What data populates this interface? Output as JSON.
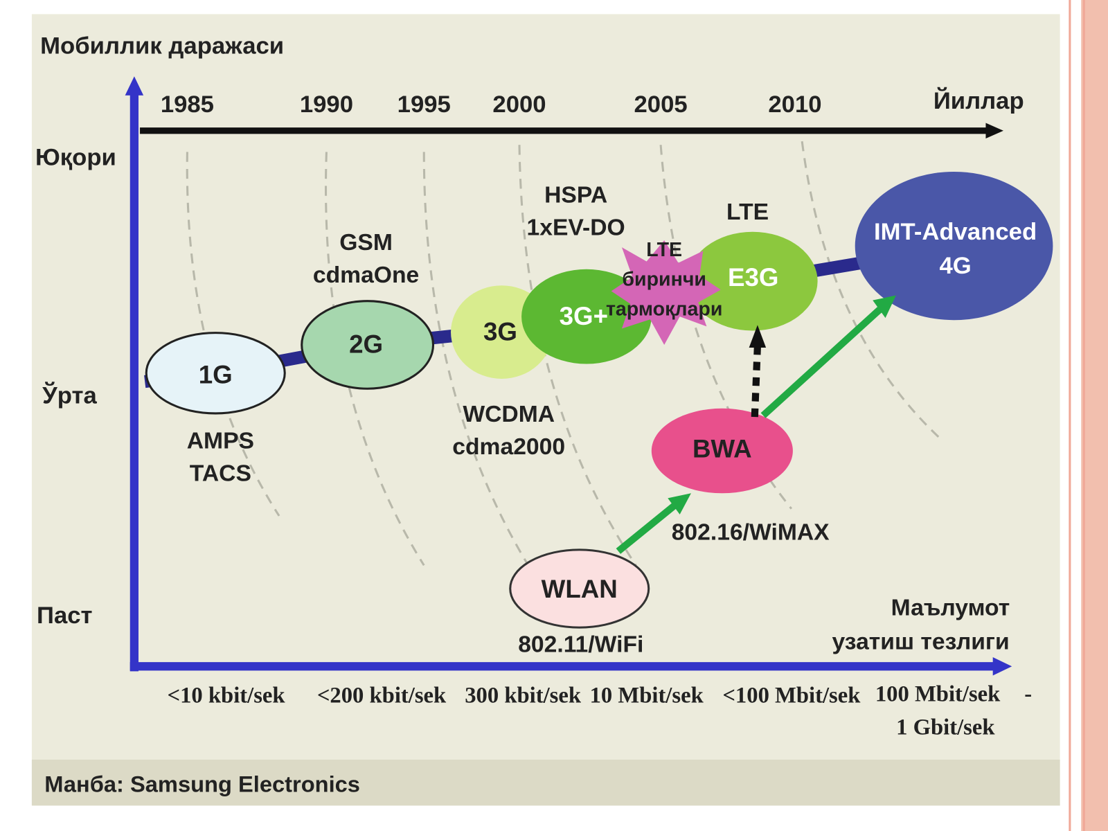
{
  "y_axis_title": "Мобиллик даражаси",
  "x_axis_top_title": "Йиллар",
  "years": [
    "1985",
    "1990",
    "1995",
    "2000",
    "2005",
    "2010"
  ],
  "levels": [
    "Юқори",
    "Ўрта",
    "Паст"
  ],
  "x_axis_bottom_title": [
    "Маълумот",
    "узатиш тезлиги"
  ],
  "speeds": [
    "<10 kbit/sek",
    "<200 kbit/sek",
    "300 kbit/sek",
    "10 Mbit/sek",
    "<100 Mbit/sek",
    "100 Mbit/sek",
    "-",
    "1 Gbit/sek"
  ],
  "nodes": [
    [
      "1G"
    ],
    [
      "2G"
    ],
    [
      "3G"
    ],
    [
      "3G+"
    ],
    [
      "E3G"
    ],
    [
      "IMT-Advanced",
      "4G"
    ],
    [
      "BWA"
    ],
    [
      "WLAN"
    ],
    [
      "LTE",
      "биринчи",
      "тармоқлари"
    ]
  ],
  "annotations": [
    [
      "AMPS",
      "TACS"
    ],
    [
      "GSM",
      "cdmaOne"
    ],
    [
      "WCDMA",
      "cdma2000"
    ],
    [
      "HSPA",
      "1xEV-DO"
    ],
    [
      "LTE"
    ],
    [
      "802.16/WiMAX"
    ],
    [
      "802.11/WiFi"
    ]
  ],
  "source": "Манба: Samsung Electronics"
}
